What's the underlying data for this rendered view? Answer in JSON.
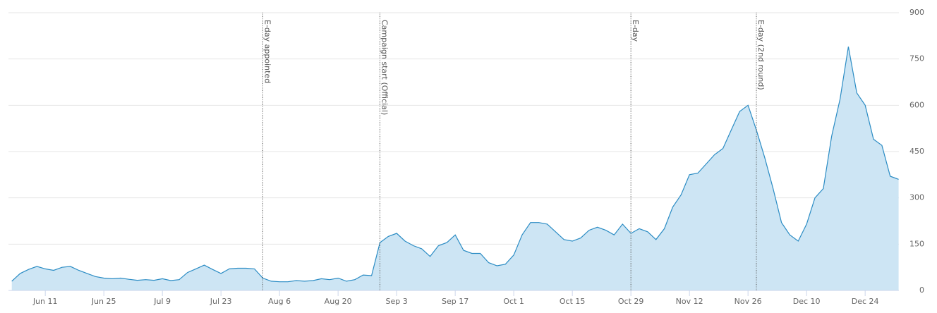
{
  "chart_data": {
    "type": "area",
    "categories": [
      null,
      null,
      null,
      null,
      "Jun 11",
      null,
      null,
      null,
      null,
      null,
      null,
      "Jun 25",
      null,
      null,
      null,
      null,
      null,
      null,
      "Jul 9",
      null,
      null,
      null,
      null,
      null,
      null,
      "Jul 23",
      null,
      null,
      null,
      null,
      null,
      null,
      "Aug 6",
      null,
      null,
      null,
      null,
      null,
      null,
      "Aug 20",
      null,
      null,
      null,
      null,
      null,
      null,
      "Sep 3",
      null,
      null,
      null,
      null,
      null,
      null,
      "Sep 17",
      null,
      null,
      null,
      null,
      null,
      null,
      "Oct 1",
      null,
      null,
      null,
      null,
      null,
      null,
      "Oct 15",
      null,
      null,
      null,
      null,
      null,
      null,
      "Oct 29",
      null,
      null,
      null,
      null,
      null,
      null,
      "Nov 12",
      null,
      null,
      null,
      null,
      null,
      null,
      "Nov 26",
      null,
      null,
      null,
      null,
      null,
      null,
      "Dec 10",
      null,
      null,
      null,
      null,
      null,
      null,
      "Dec 24",
      null,
      null,
      null,
      null
    ],
    "values": [
      30,
      55,
      68,
      78,
      70,
      65,
      75,
      78,
      65,
      55,
      45,
      40,
      38,
      40,
      36,
      33,
      35,
      33,
      38,
      32,
      35,
      58,
      70,
      82,
      68,
      55,
      70,
      72,
      72,
      70,
      40,
      30,
      28,
      28,
      32,
      30,
      32,
      38,
      35,
      40,
      30,
      35,
      50,
      48,
      155,
      175,
      185,
      160,
      145,
      135,
      110,
      145,
      155,
      180,
      130,
      120,
      120,
      90,
      80,
      85,
      115,
      180,
      220,
      220,
      215,
      190,
      165,
      160,
      170,
      195,
      205,
      195,
      180,
      215,
      185,
      200,
      190,
      165,
      200,
      270,
      310,
      375,
      380,
      410,
      440,
      460,
      520,
      580,
      600,
      520,
      430,
      330,
      220,
      180,
      160,
      215,
      300,
      330,
      500,
      620,
      790,
      640,
      600,
      490,
      470,
      370,
      360
    ],
    "color": "#2b8cc4",
    "fill": "#cde5f4",
    "ylim": [
      0,
      900
    ],
    "yticks": [
      0,
      150,
      300,
      450,
      600,
      750,
      900
    ],
    "grid": true,
    "annotations": [
      {
        "text": "E-day appointed",
        "x": 30
      },
      {
        "text": "Campaign start (Official)",
        "x": 44
      },
      {
        "text": "E-day",
        "x": 74
      },
      {
        "text": "E-day (2nd round)",
        "x": 89
      }
    ]
  }
}
